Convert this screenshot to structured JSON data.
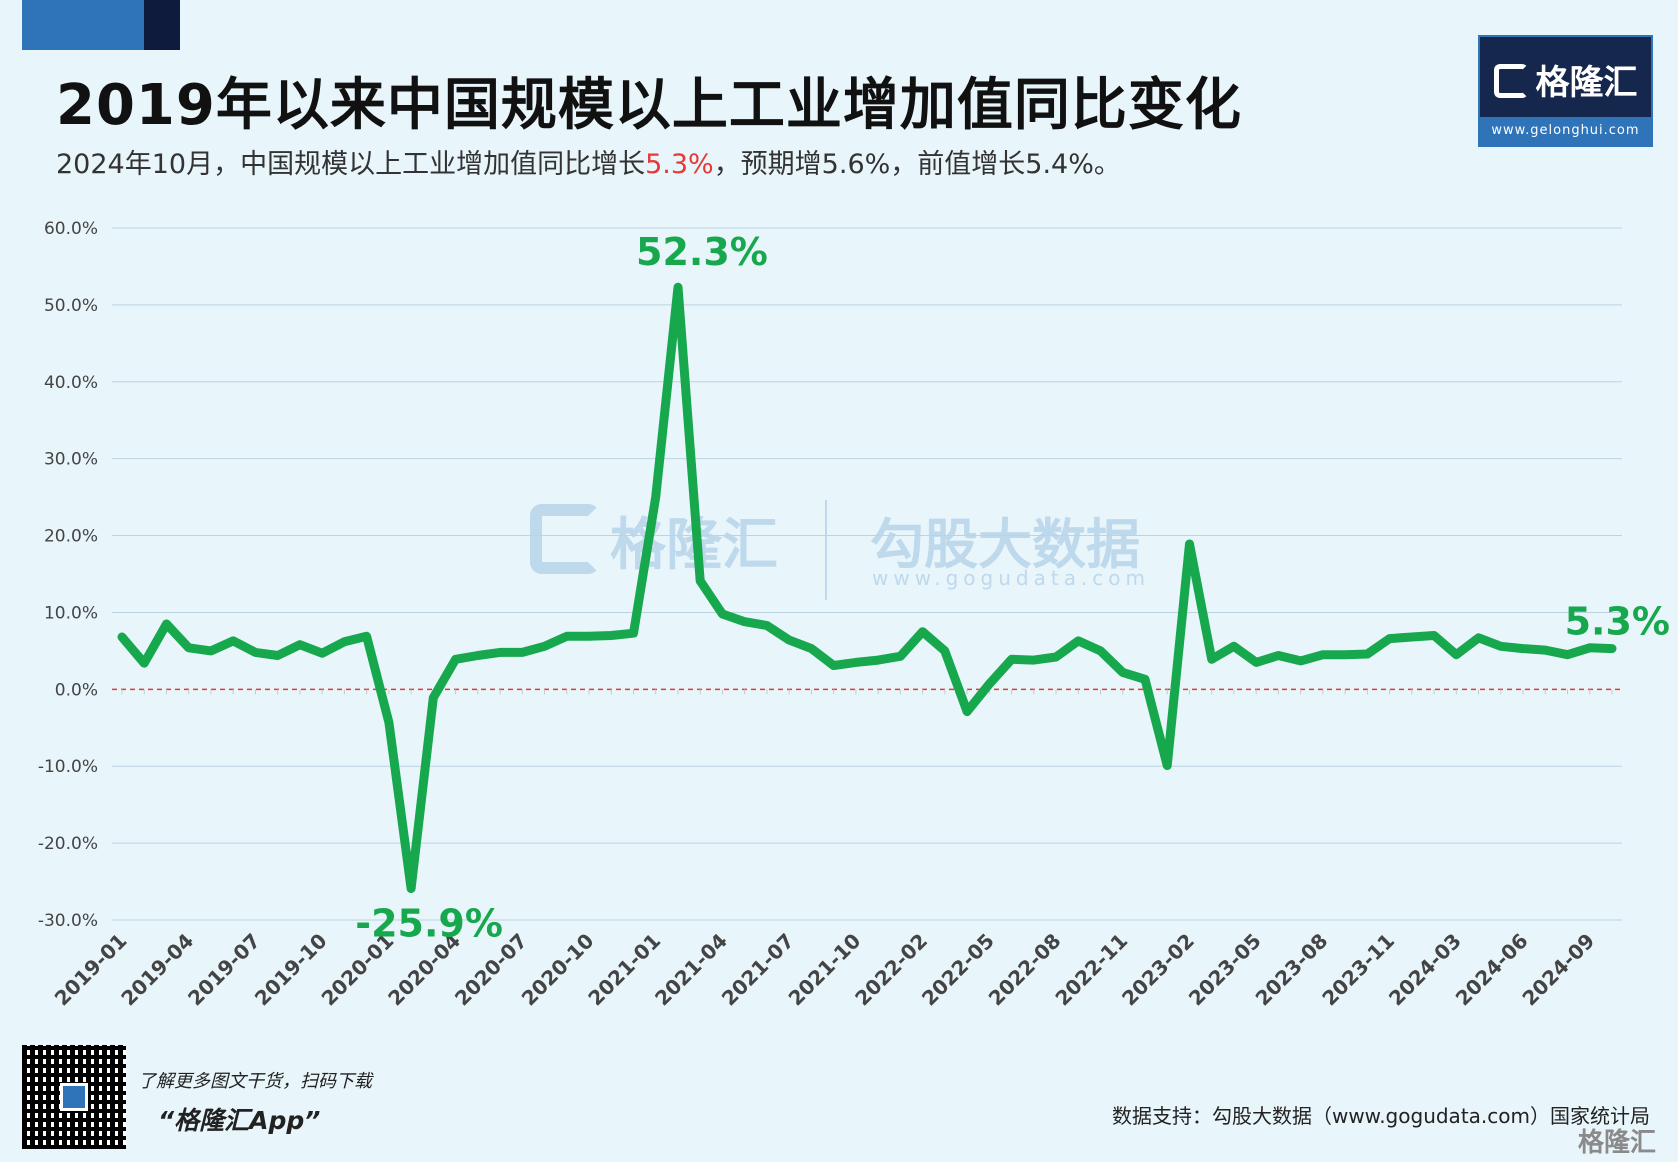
{
  "header": {
    "title": "2019年以来中国规模以上工业增加值同比变化",
    "subtitle_pre": "2024年10月，中国规模以上工业增加值同比增长",
    "subtitle_hl": "5.3%",
    "subtitle_post": "，预期增5.6%，前值增长5.4%。"
  },
  "brand": {
    "name": "格隆汇",
    "url": "www.gelonghui.com"
  },
  "watermark": {
    "left_name": "格隆汇",
    "right_name": "勾股大数据",
    "right_url": "www.gogudata.com"
  },
  "footer": {
    "qr_text": "了解更多图文干货，扫码下载",
    "app_name": "“格隆汇App”",
    "source": "数据支持：勾股大数据（www.gogudata.com）国家统计局",
    "brand": "格隆汇"
  },
  "colors": {
    "line": "#17a84e",
    "zero_line": "#e53935",
    "grid": "#bcd3e2",
    "highlight": "#e53935"
  },
  "chart_data": {
    "type": "line",
    "title": "2019年以来中国规模以上工业增加值同比变化",
    "xlabel": "",
    "ylabel": "",
    "ylim": [
      -30,
      60
    ],
    "yticks": [
      "60.0%",
      "50.0%",
      "40.0%",
      "30.0%",
      "20.0%",
      "10.0%",
      "0.0%",
      "-10.0%",
      "-20.0%",
      "-30.0%"
    ],
    "ytick_values": [
      60,
      50,
      40,
      30,
      20,
      10,
      0,
      -10,
      -20,
      -30
    ],
    "grid": true,
    "x": [
      "2019-01",
      "2019-02",
      "2019-03",
      "2019-04",
      "2019-05",
      "2019-06",
      "2019-07",
      "2019-08",
      "2019-09",
      "2019-10",
      "2019-11",
      "2019-12",
      "2020-01",
      "2020-02",
      "2020-03",
      "2020-04",
      "2020-05",
      "2020-06",
      "2020-07",
      "2020-08",
      "2020-09",
      "2020-10",
      "2020-11",
      "2020-12",
      "2021-01",
      "2021-02",
      "2021-03",
      "2021-04",
      "2021-05",
      "2021-06",
      "2021-07",
      "2021-08",
      "2021-09",
      "2021-10",
      "2021-11",
      "2021-12",
      "2022-02",
      "2022-03",
      "2022-04",
      "2022-05",
      "2022-06",
      "2022-07",
      "2022-08",
      "2022-09",
      "2022-10",
      "2022-11",
      "2022-12",
      "2023-01",
      "2023-02",
      "2023-03",
      "2023-04",
      "2023-05",
      "2023-06",
      "2023-07",
      "2023-08",
      "2023-09",
      "2023-10",
      "2023-11",
      "2023-12",
      "2024-02",
      "2024-03",
      "2024-04",
      "2024-05",
      "2024-06",
      "2024-07",
      "2024-08",
      "2024-09",
      "2024-10"
    ],
    "xtick_labels": [
      "2019-01",
      "2019-04",
      "2019-07",
      "2019-10",
      "2020-01",
      "2020-04",
      "2020-07",
      "2020-10",
      "2021-01",
      "2021-04",
      "2021-07",
      "2021-10",
      "2022-02",
      "2022-05",
      "2022-08",
      "2022-11",
      "2023-02",
      "2023-05",
      "2023-08",
      "2023-11",
      "2024-03",
      "2024-06",
      "2024-09"
    ],
    "series": [
      {
        "values": [
          6.8,
          3.4,
          8.5,
          5.4,
          5.0,
          6.3,
          4.8,
          4.4,
          5.8,
          4.7,
          6.2,
          6.9,
          -4.3,
          -25.9,
          -1.1,
          3.9,
          4.4,
          4.8,
          4.8,
          5.6,
          6.9,
          6.9,
          7.0,
          7.3,
          25.0,
          52.3,
          14.1,
          9.8,
          8.8,
          8.3,
          6.4,
          5.3,
          3.1,
          3.5,
          3.8,
          4.3,
          7.5,
          5.0,
          -2.9,
          0.7,
          3.9,
          3.8,
          4.2,
          6.3,
          5.0,
          2.2,
          1.3,
          -9.9,
          18.9,
          3.9,
          5.6,
          3.5,
          4.4,
          3.7,
          4.5,
          4.5,
          4.6,
          6.6,
          6.8,
          7.0,
          4.5,
          6.7,
          5.6,
          5.3,
          5.1,
          4.5,
          5.4,
          5.3
        ]
      }
    ],
    "annotations": [
      {
        "x": "2021-02",
        "label": "52.3%"
      },
      {
        "x": "2020-02",
        "label": "-25.9%"
      },
      {
        "x": "2024-10",
        "label": "5.3%"
      }
    ]
  }
}
